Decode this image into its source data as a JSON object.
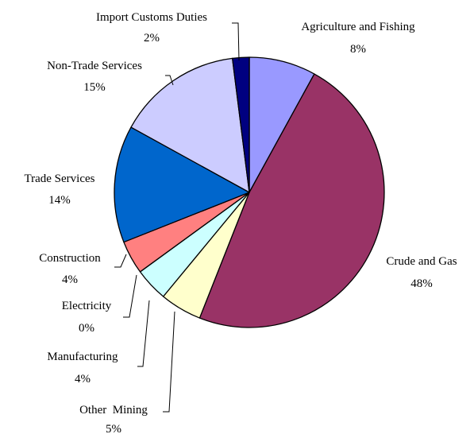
{
  "chart_data": {
    "type": "pie",
    "title": "",
    "start": "12 o'clock",
    "direction": "clockwise",
    "slices": [
      {
        "label": "Agriculture and Fishing",
        "value": 8,
        "value_label": "8%",
        "color": "#9999ff"
      },
      {
        "label": "Crude and Gas",
        "value": 48,
        "value_label": "48%",
        "color": "#993366"
      },
      {
        "label": "Other  Mining",
        "value": 5,
        "value_label": "5%",
        "color": "#ffffcc"
      },
      {
        "label": "Manufacturing",
        "value": 4,
        "value_label": "4%",
        "color": "#ccffff"
      },
      {
        "label": "Electricity",
        "value": 0,
        "value_label": "0%",
        "color": "#660066"
      },
      {
        "label": "Construction",
        "value": 4,
        "value_label": "4%",
        "color": "#ff8080"
      },
      {
        "label": "Trade Services",
        "value": 14,
        "value_label": "14%",
        "color": "#0066cc"
      },
      {
        "label": "Non-Trade Services",
        "value": 15,
        "value_label": "15%",
        "color": "#ccccff"
      },
      {
        "label": "Import Customs Duties",
        "value": 2,
        "value_label": "2%",
        "color": "#000080"
      }
    ]
  }
}
